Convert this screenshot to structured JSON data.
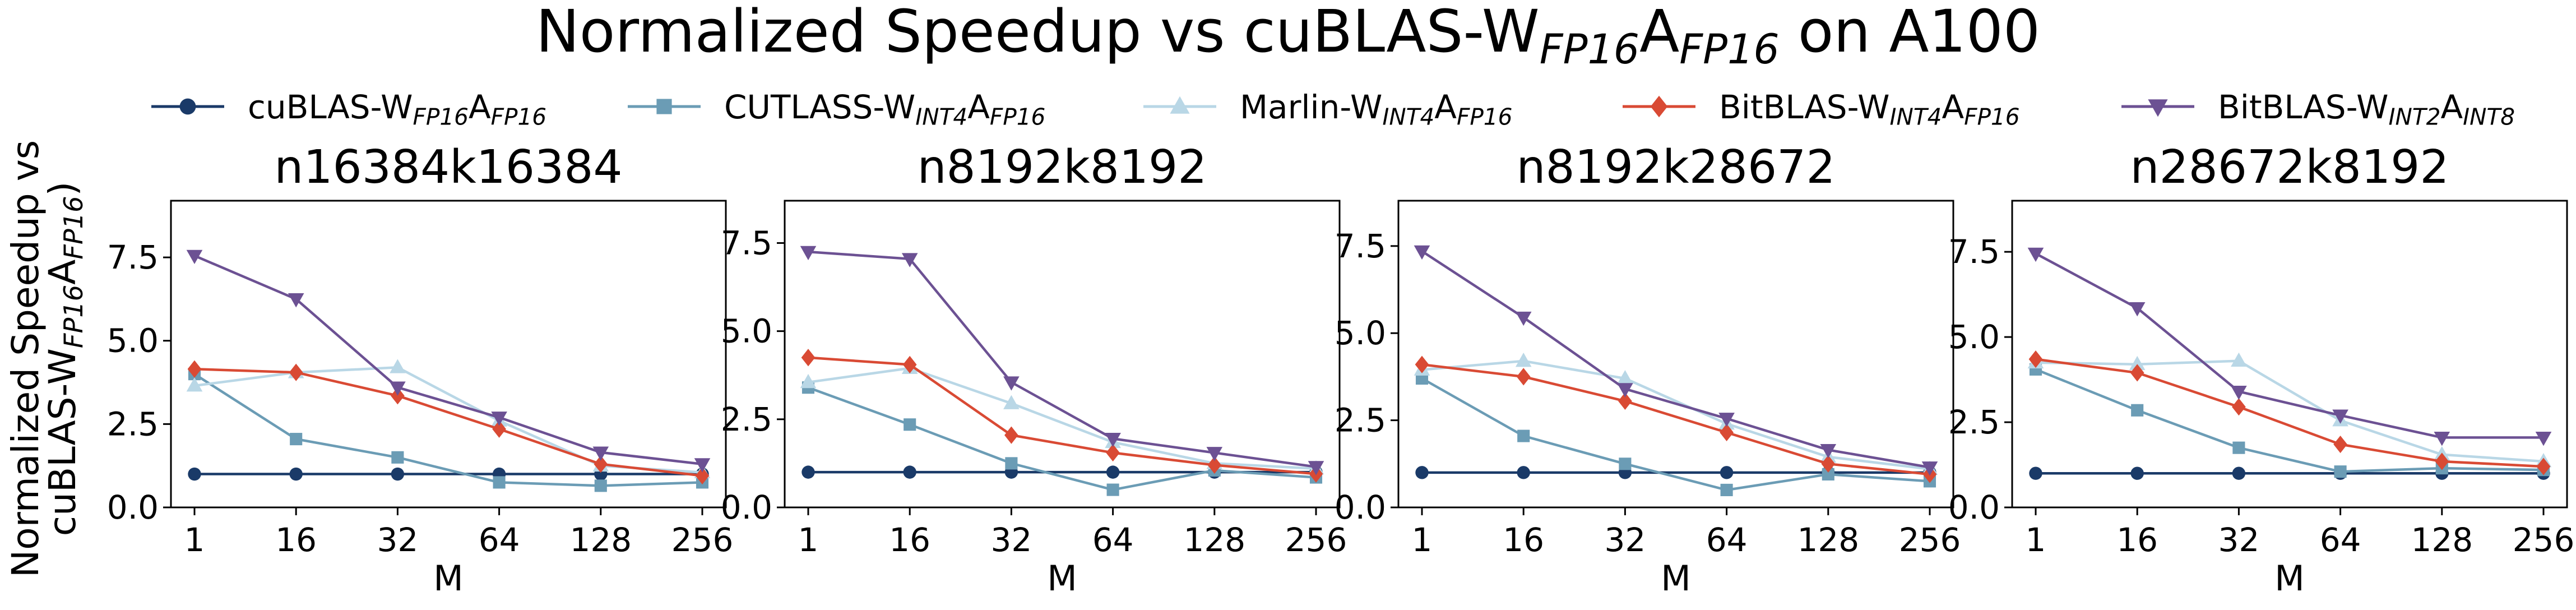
{
  "figure": {
    "title": "Normalized Speedup vs cuBLAS-W_{FP16}A_{FP16} on A100",
    "ylabel": "Normalized Speedup vs\ncuBLAS-W_{FP16}A_{FP16})"
  },
  "legend": {
    "placement": "top-center",
    "entries": [
      {
        "label": "cuBLAS-W_{FP16}A_{FP16}",
        "color": "#1a3a68",
        "marker": "circle"
      },
      {
        "label": "CUTLASS-W_{INT4}A_{FP16}",
        "color": "#6b9cb5",
        "marker": "square"
      },
      {
        "label": "Marlin-W_{INT4}A_{FP16}",
        "color": "#b9d7e6",
        "marker": "triangle-up"
      },
      {
        "label": "BitBLAS-W_{INT4}A_{FP16}",
        "color": "#d94a34",
        "marker": "diamond"
      },
      {
        "label": "BitBLAS-W_{INT2}A_{INT8}",
        "color": "#6c5193",
        "marker": "triangle-down"
      }
    ]
  },
  "chart_data": [
    {
      "type": "line",
      "title": "n16384k16384",
      "xlabel": "M",
      "categories": [
        "1",
        "16",
        "32",
        "64",
        "128",
        "256"
      ],
      "ylim": [
        0,
        9.2
      ],
      "yticks": [
        0.0,
        2.5,
        5.0,
        7.5
      ],
      "series": [
        {
          "name": "cuBLAS-W_{FP16}A_{FP16}",
          "values": [
            1.0,
            1.0,
            1.0,
            1.0,
            1.0,
            1.0
          ]
        },
        {
          "name": "CUTLASS-W_{INT4}A_{FP16}",
          "values": [
            4.0,
            2.05,
            1.5,
            0.75,
            0.65,
            0.75
          ]
        },
        {
          "name": "Marlin-W_{INT4}A_{FP16}",
          "values": [
            3.65,
            4.05,
            4.2,
            2.6,
            1.25,
            1.05
          ]
        },
        {
          "name": "BitBLAS-W_{INT4}A_{FP16}",
          "values": [
            4.15,
            4.05,
            3.35,
            2.35,
            1.3,
            0.95
          ]
        },
        {
          "name": "BitBLAS-W_{INT2}A_{INT8}",
          "values": [
            7.55,
            6.25,
            3.6,
            2.7,
            1.65,
            1.3
          ]
        }
      ]
    },
    {
      "type": "line",
      "title": "n8192k8192",
      "xlabel": "M",
      "categories": [
        "1",
        "16",
        "32",
        "64",
        "128",
        "256"
      ],
      "ylim": [
        0,
        8.7
      ],
      "yticks": [
        0.0,
        2.5,
        5.0,
        7.5
      ],
      "series": [
        {
          "name": "cuBLAS-W_{FP16}A_{FP16}",
          "values": [
            1.0,
            1.0,
            1.0,
            1.0,
            1.0,
            1.0
          ]
        },
        {
          "name": "CUTLASS-W_{INT4}A_{FP16}",
          "values": [
            3.4,
            2.35,
            1.25,
            0.5,
            1.05,
            0.85
          ]
        },
        {
          "name": "Marlin-W_{INT4}A_{FP16}",
          "values": [
            3.55,
            3.95,
            2.95,
            1.85,
            1.25,
            1.1
          ]
        },
        {
          "name": "BitBLAS-W_{INT4}A_{FP16}",
          "values": [
            4.25,
            4.05,
            2.05,
            1.55,
            1.2,
            0.95
          ]
        },
        {
          "name": "BitBLAS-W_{INT2}A_{INT8}",
          "values": [
            7.25,
            7.05,
            3.55,
            1.95,
            1.55,
            1.15
          ]
        }
      ]
    },
    {
      "type": "line",
      "title": "n8192k28672",
      "xlabel": "M",
      "categories": [
        "1",
        "16",
        "32",
        "64",
        "128",
        "256"
      ],
      "ylim": [
        0,
        8.8
      ],
      "yticks": [
        0.0,
        2.5,
        5.0,
        7.5
      ],
      "series": [
        {
          "name": "cuBLAS-W_{FP16}A_{FP16}",
          "values": [
            1.0,
            1.0,
            1.0,
            1.0,
            1.0,
            1.0
          ]
        },
        {
          "name": "CUTLASS-W_{INT4}A_{FP16}",
          "values": [
            3.7,
            2.05,
            1.25,
            0.5,
            0.95,
            0.75
          ]
        },
        {
          "name": "Marlin-W_{INT4}A_{FP16}",
          "values": [
            3.95,
            4.2,
            3.7,
            2.4,
            1.45,
            1.1
          ]
        },
        {
          "name": "BitBLAS-W_{INT4}A_{FP16}",
          "values": [
            4.1,
            3.75,
            3.05,
            2.15,
            1.25,
            0.95
          ]
        },
        {
          "name": "BitBLAS-W_{INT2}A_{INT8}",
          "values": [
            7.35,
            5.45,
            3.4,
            2.55,
            1.65,
            1.15
          ]
        }
      ]
    },
    {
      "type": "line",
      "title": "n28672k8192",
      "xlabel": "M",
      "categories": [
        "1",
        "16",
        "32",
        "64",
        "128",
        "256"
      ],
      "ylim": [
        0,
        9.0
      ],
      "yticks": [
        0.0,
        2.5,
        5.0,
        7.5
      ],
      "series": [
        {
          "name": "cuBLAS-W_{FP16}A_{FP16}",
          "values": [
            1.0,
            1.0,
            1.0,
            1.0,
            1.0,
            1.0
          ]
        },
        {
          "name": "CUTLASS-W_{INT4}A_{FP16}",
          "values": [
            4.05,
            2.85,
            1.75,
            1.05,
            1.15,
            1.1
          ]
        },
        {
          "name": "Marlin-W_{INT4}A_{FP16}",
          "values": [
            4.25,
            4.2,
            4.3,
            2.55,
            1.55,
            1.35
          ]
        },
        {
          "name": "BitBLAS-W_{INT4}A_{FP16}",
          "values": [
            4.35,
            3.95,
            2.95,
            1.85,
            1.35,
            1.2
          ]
        },
        {
          "name": "BitBLAS-W_{INT2}A_{INT8}",
          "values": [
            7.45,
            5.85,
            3.4,
            2.7,
            2.05,
            2.05
          ]
        }
      ]
    }
  ]
}
